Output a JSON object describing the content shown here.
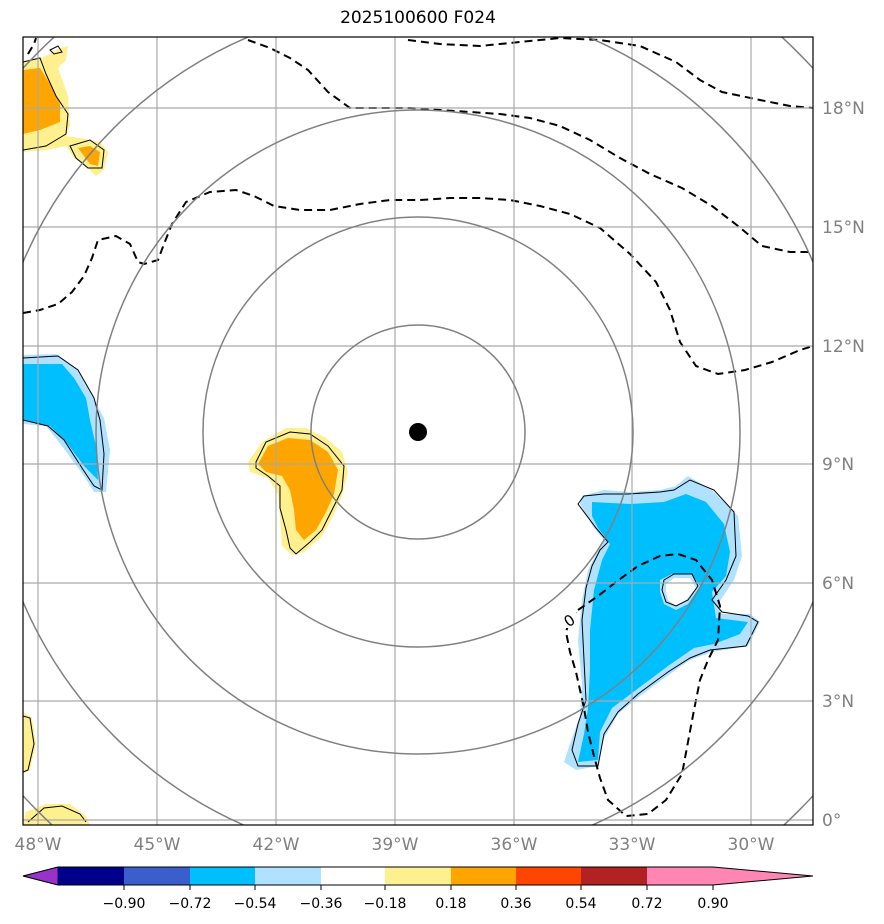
{
  "title": "2025100600 F024",
  "map": {
    "lon_range": [
      -48.0,
      -29.0
    ],
    "lat_range": [
      -0.1,
      19.9
    ],
    "center": {
      "lon": -38.5,
      "lat": 9.75
    },
    "range_rings_deg": [
      2.7,
      5.4,
      8.1,
      10.8,
      13.5
    ],
    "lon_ticks": [
      -48,
      -45,
      -42,
      -39,
      -36,
      -33,
      -30
    ],
    "lon_labels": [
      "48°W",
      "45°W",
      "42°W",
      "39°W",
      "36°W",
      "33°W",
      "30°W"
    ],
    "lat_ticks": [
      0,
      3,
      6,
      9,
      12,
      15,
      18
    ],
    "lat_labels": [
      "0°",
      "3°N",
      "6°N",
      "9°N",
      "12°N",
      "15°N",
      "18°N"
    ],
    "contour_label": "0"
  },
  "colorbar": {
    "levels": [
      "−0.90",
      "−0.72",
      "−0.54",
      "−0.36",
      "−0.18",
      "0.18",
      "0.36",
      "0.54",
      "0.72",
      "0.90"
    ],
    "colors": [
      "#9932cc",
      "#00008b",
      "#3a5fcd",
      "#00bfff",
      "#b0e2ff",
      "#ffffff",
      "#fff08f",
      "#ffa500",
      "#ff4500",
      "#b22222",
      "#ff85b3"
    ]
  },
  "colors": {
    "grid": "#a9a9a9",
    "rings": "#808080",
    "positive": "#ffa500",
    "positive_light": "#fff08f",
    "negative": "#00bfff",
    "negative_light": "#b0e2ff"
  }
}
